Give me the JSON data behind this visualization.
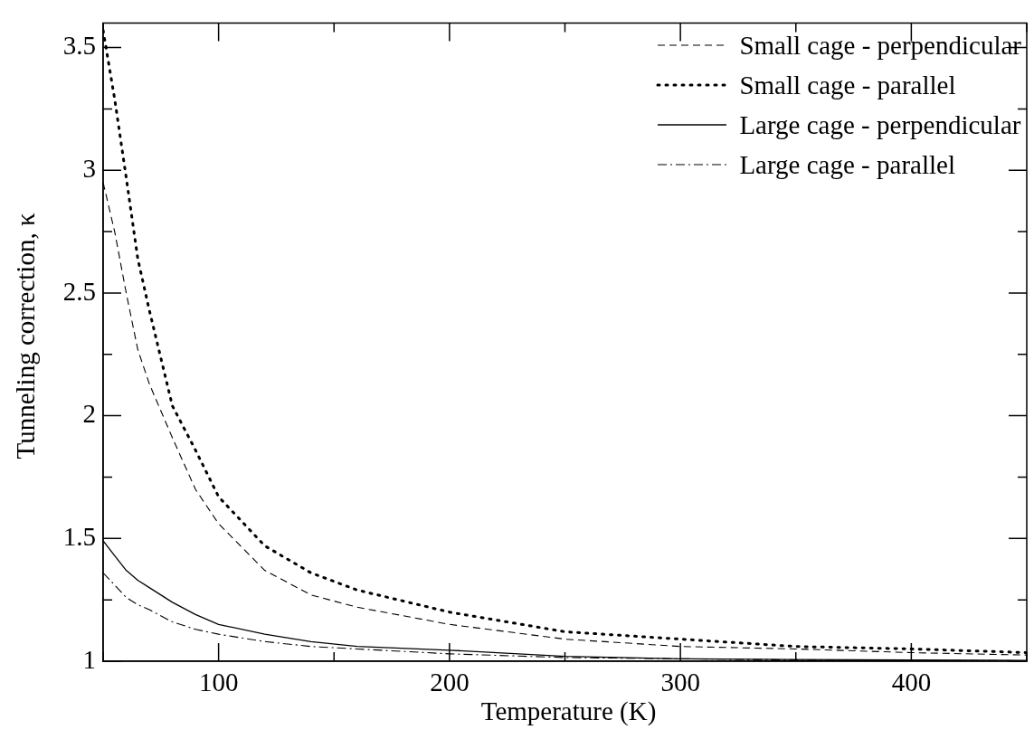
{
  "chart_data": {
    "type": "line",
    "xlabel": "Temperature (K)",
    "ylabel": "Tunneling correction, κ",
    "x": [
      50,
      55,
      60,
      65,
      70,
      80,
      90,
      100,
      120,
      140,
      160,
      200,
      250,
      300,
      350,
      400,
      450
    ],
    "series": [
      {
        "name": "Small cage - perpendicular",
        "color": "#000000",
        "line_style": "dashed",
        "values": [
          2.95,
          2.75,
          2.5,
          2.27,
          2.13,
          1.91,
          1.7,
          1.56,
          1.37,
          1.27,
          1.22,
          1.15,
          1.09,
          1.06,
          1.05,
          1.035,
          1.025
        ]
      },
      {
        "name": "Small cage - parallel",
        "color": "#000000",
        "line_style": "dotted",
        "values": [
          3.57,
          3.29,
          2.97,
          2.64,
          2.43,
          2.04,
          1.86,
          1.67,
          1.47,
          1.36,
          1.29,
          1.2,
          1.12,
          1.09,
          1.06,
          1.05,
          1.035
        ]
      },
      {
        "name": "Large cage - perpendicular",
        "color": "#000000",
        "line_style": "solid",
        "values": [
          1.49,
          1.43,
          1.37,
          1.33,
          1.3,
          1.24,
          1.19,
          1.15,
          1.11,
          1.08,
          1.06,
          1.045,
          1.02,
          1.01,
          1.007,
          1.005,
          1.003
        ]
      },
      {
        "name": "Large cage - parallel",
        "color": "#000000",
        "line_style": "dashdot",
        "values": [
          1.36,
          1.31,
          1.26,
          1.23,
          1.21,
          1.16,
          1.13,
          1.11,
          1.08,
          1.06,
          1.05,
          1.03,
          1.015,
          1.01,
          1.005,
          1.003,
          1.002
        ]
      }
    ],
    "xlim": [
      50,
      450
    ],
    "xticks": [
      {
        "value": 50,
        "label": null
      },
      100,
      {
        "value": 150,
        "label": null
      },
      200,
      {
        "value": 250,
        "label": null
      },
      300,
      {
        "value": 350,
        "label": null
      },
      400,
      {
        "value": 450,
        "label": null
      }
    ],
    "ylim": [
      1,
      3.6
    ],
    "yticks": [
      1,
      {
        "value": 1.25,
        "label": null
      },
      1.5,
      {
        "value": 1.75,
        "label": null
      },
      2,
      {
        "value": 2.25,
        "label": null
      },
      2.5,
      {
        "value": 2.75,
        "label": null
      },
      3,
      {
        "value": 3.25,
        "label": null
      },
      3.5
    ],
    "grid": false,
    "legend": "top right",
    "marker": "none"
  }
}
